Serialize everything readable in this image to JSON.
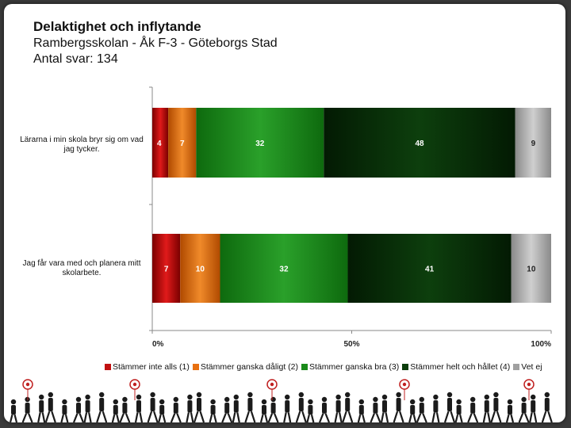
{
  "title": "Delaktighet och inflytande",
  "subtitle": "Rambergsskolan - Åk F-3 - Göteborgs Stad",
  "responses": "Antal svar: 134",
  "chart_data": {
    "type": "bar",
    "orientation": "horizontal",
    "stacked": true,
    "normalized_percent": true,
    "categories": [
      "Lärarna i min skola bryr sig om vad jag tycker.",
      "Jag får vara med och planera mitt skolarbete."
    ],
    "series": [
      {
        "name": "Stämmer inte alls (1)",
        "color": "#c01010",
        "values": [
          4,
          7
        ]
      },
      {
        "name": "Stämmer ganska dåligt (2)",
        "color": "#e87010",
        "values": [
          7,
          10
        ]
      },
      {
        "name": "Stämmer ganska bra (3)",
        "color": "#1a8a1a",
        "values": [
          32,
          32
        ]
      },
      {
        "name": "Stämmer helt och hållet (4)",
        "color": "#0b3d0b",
        "values": [
          48,
          41
        ]
      },
      {
        "name": "Vet ej",
        "color": "#a0a0a0",
        "values": [
          9,
          10
        ]
      }
    ],
    "xlim": [
      0,
      100
    ],
    "xticks": [
      "0%",
      "50%",
      "100%"
    ],
    "legend_position": "bottom"
  }
}
